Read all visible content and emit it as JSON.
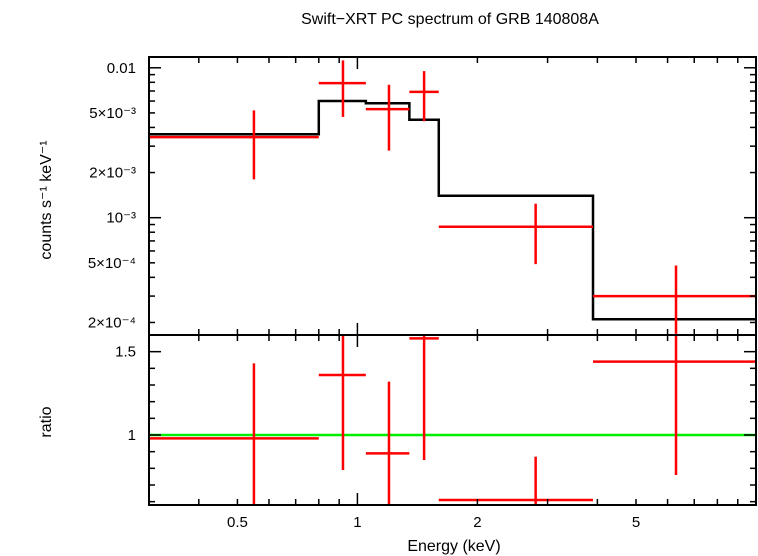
{
  "chart_data": [
    {
      "type": "line",
      "panel": "spectrum",
      "title": "Swift−XRT PC spectrum of GRB 140808A",
      "xlabel": "",
      "ylabel": "counts s⁻¹ keV⁻¹",
      "x_scale": "log",
      "y_scale": "log",
      "xlim": [
        0.3,
        10
      ],
      "ylim": [
        0.000165,
        0.0118
      ],
      "y_ticks": [
        {
          "value": 0.01,
          "label": "0.01"
        },
        {
          "value": 0.005,
          "label": "5×10⁻³"
        },
        {
          "value": 0.002,
          "label": "2×10⁻³"
        },
        {
          "value": 0.001,
          "label": "10⁻³"
        },
        {
          "value": 0.0005,
          "label": "5×10⁻⁴"
        },
        {
          "value": 0.0002,
          "label": "2×10⁻⁴"
        }
      ],
      "data_points": {
        "color": "#ff0000",
        "points": [
          {
            "x": 0.55,
            "xlo": 0.3,
            "xhi": 0.8,
            "y": 0.00345,
            "ylo": 0.0018,
            "yhi": 0.0052
          },
          {
            "x": 0.92,
            "xlo": 0.8,
            "xhi": 1.05,
            "y": 0.0079,
            "ylo": 0.0047,
            "yhi": 0.0112
          },
          {
            "x": 1.2,
            "xlo": 1.05,
            "xhi": 1.35,
            "y": 0.0053,
            "ylo": 0.0028,
            "yhi": 0.0077
          },
          {
            "x": 1.47,
            "xlo": 1.35,
            "xhi": 1.6,
            "y": 0.0069,
            "ylo": 0.0044,
            "yhi": 0.0095
          },
          {
            "x": 2.8,
            "xlo": 1.6,
            "xhi": 3.9,
            "y": 0.00087,
            "ylo": 0.00049,
            "yhi": 0.00124
          },
          {
            "x": 6.3,
            "xlo": 3.9,
            "xhi": 10,
            "y": 0.0003,
            "ylo": 0.000168,
            "yhi": 0.00048
          }
        ]
      },
      "model": {
        "color": "#000000",
        "steps": [
          {
            "x0": 0.3,
            "x1": 0.8,
            "y": 0.0036
          },
          {
            "x0": 0.8,
            "x1": 1.05,
            "y": 0.006
          },
          {
            "x0": 1.05,
            "x1": 1.35,
            "y": 0.0058
          },
          {
            "x0": 1.35,
            "x1": 1.6,
            "y": 0.0045
          },
          {
            "x0": 1.6,
            "x1": 3.9,
            "y": 0.0014
          },
          {
            "x0": 3.9,
            "x1": 10,
            "y": 0.00021
          }
        ]
      }
    },
    {
      "type": "line",
      "panel": "ratio",
      "xlabel": "Energy (keV)",
      "ylabel": "ratio",
      "x_scale": "log",
      "xlim": [
        0.3,
        10
      ],
      "ylim": [
        0.58,
        1.6
      ],
      "x_ticks": [
        {
          "value": 0.5,
          "label": "0.5"
        },
        {
          "value": 1,
          "label": "1"
        },
        {
          "value": 2,
          "label": "2"
        },
        {
          "value": 5,
          "label": "5"
        }
      ],
      "y_ticks": [
        {
          "value": 1.5,
          "label": "1.5"
        },
        {
          "value": 1,
          "label": "1"
        }
      ],
      "reference_line": {
        "y": 1,
        "color": "#00ee00"
      },
      "data_points": {
        "color": "#ff0000",
        "points": [
          {
            "x": 0.55,
            "xlo": 0.3,
            "xhi": 0.8,
            "y": 0.98,
            "ylo": 0.58,
            "yhi": 1.43
          },
          {
            "x": 0.92,
            "xlo": 0.8,
            "xhi": 1.05,
            "y": 1.36,
            "ylo": 0.79,
            "yhi": 1.6
          },
          {
            "x": 1.2,
            "xlo": 1.05,
            "xhi": 1.35,
            "y": 0.89,
            "ylo": 0.58,
            "yhi": 1.32
          },
          {
            "x": 1.47,
            "xlo": 1.35,
            "xhi": 1.6,
            "y": 1.58,
            "ylo": 0.85,
            "yhi": 1.6
          },
          {
            "x": 2.8,
            "xlo": 1.6,
            "xhi": 3.9,
            "y": 0.61,
            "ylo": 0.58,
            "yhi": 0.87
          },
          {
            "x": 6.3,
            "xlo": 3.9,
            "xhi": 10,
            "y": 1.44,
            "ylo": 0.76,
            "yhi": 1.6
          }
        ]
      }
    }
  ]
}
